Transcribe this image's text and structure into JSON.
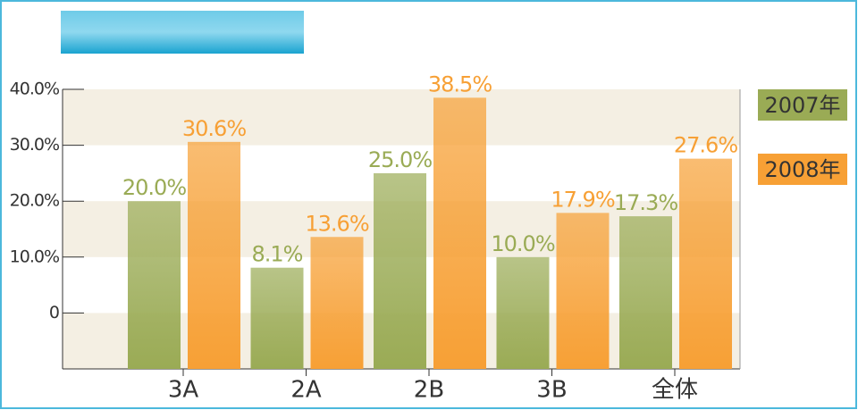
{
  "chart_data": {
    "type": "bar",
    "categories": [
      "3A",
      "2A",
      "2B",
      "3B",
      "全体"
    ],
    "series": [
      {
        "name": "2007年",
        "color": "#9aab55",
        "values": [
          20.0,
          8.1,
          25.0,
          10.0,
          17.3
        ],
        "value_labels": [
          "20.0%",
          "8.1%",
          "25.0%",
          "10.0%",
          "17.3%"
        ]
      },
      {
        "name": "2008年",
        "color": "#f7a035",
        "values": [
          30.6,
          13.6,
          38.5,
          17.9,
          27.6
        ],
        "value_labels": [
          "30.6%",
          "13.6%",
          "38.5%",
          "17.9%",
          "27.6%"
        ]
      }
    ],
    "ylim": [
      -10,
      40
    ],
    "yticks": [
      {
        "value": 40,
        "label": "40.0%"
      },
      {
        "value": 30,
        "label": "30.0%"
      },
      {
        "value": 20,
        "label": "20.0%"
      },
      {
        "value": 10,
        "label": "10.0%"
      },
      0
    ],
    "legend": "right"
  }
}
